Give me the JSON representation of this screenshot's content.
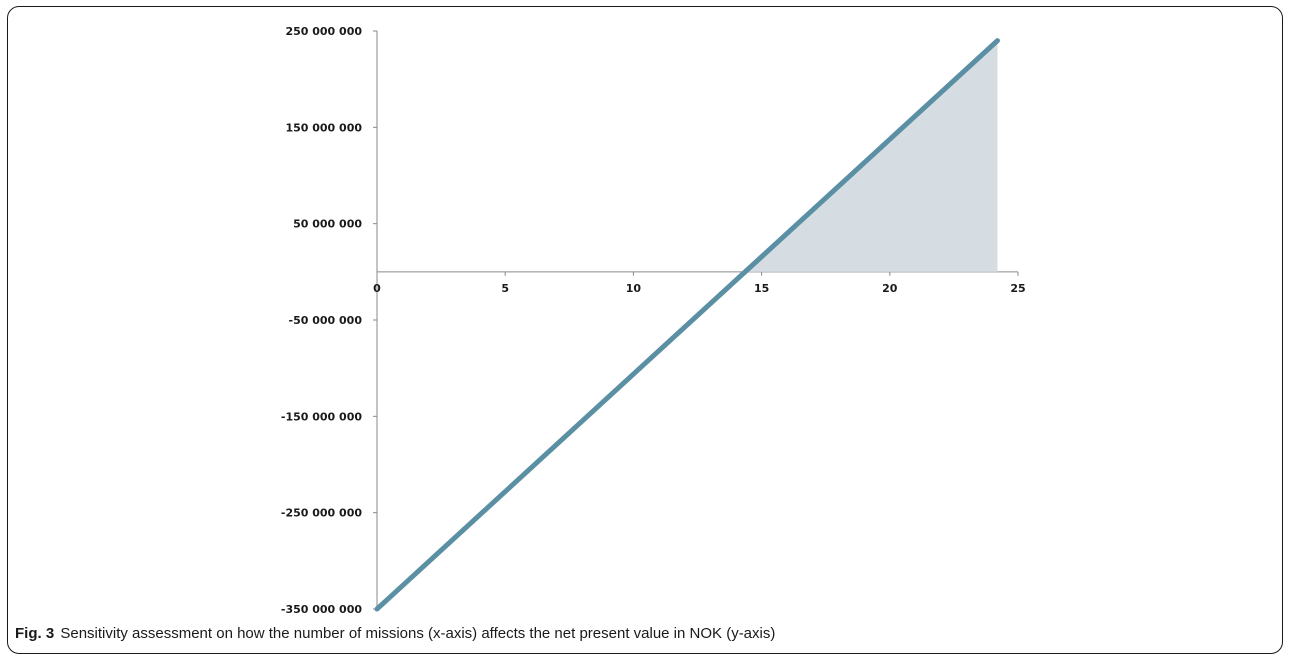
{
  "figure": {
    "caption_label": "Fig. 3",
    "caption_text": "Sensitivity assessment on how the number of missions (x-axis) affects the net present value in NOK (y-axis)"
  },
  "chart_data": {
    "type": "line",
    "title": "",
    "xlabel": "",
    "ylabel": "",
    "xlim": [
      0,
      25
    ],
    "ylim": [
      -350000000,
      250000000
    ],
    "x_ticks": [
      0,
      5,
      10,
      15,
      20,
      25
    ],
    "x_tick_labels": [
      "0",
      "5",
      "10",
      "15",
      "20",
      "25"
    ],
    "y_ticks": [
      250000000,
      150000000,
      50000000,
      -50000000,
      -150000000,
      -250000000,
      -350000000
    ],
    "y_tick_labels": [
      "250 000 000",
      "150 000 000",
      "50 000 000",
      "-50 000 000",
      "-150 000 000",
      "-250 000 000",
      "-350 000 000"
    ],
    "grid": false,
    "series": [
      {
        "x": [
          0,
          24.2
        ],
        "y": [
          -350000000,
          240000000
        ]
      }
    ],
    "shaded_region": {
      "x_from": 14.36,
      "x_to": 24.2,
      "description_positive_npv": true
    },
    "colors": {
      "line": "#5b8fa4",
      "fill": "#d5dde2",
      "axis": "#8a8a8a"
    }
  }
}
